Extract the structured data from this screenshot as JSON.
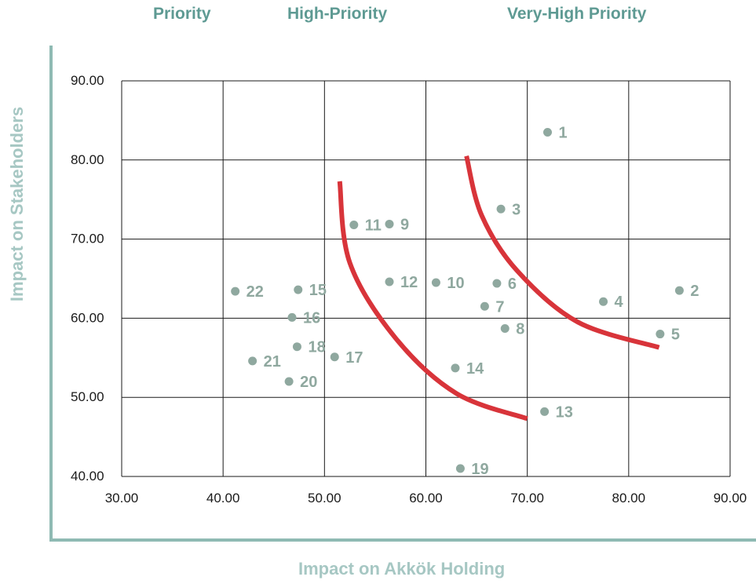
{
  "chart_data": {
    "type": "scatter",
    "title": "",
    "zones": [
      "Priority",
      "High-Priority",
      "Very-High Priority"
    ],
    "xlabel": "Impact on Akkök Holding",
    "ylabel": "Impact on Stakeholders",
    "xlim": [
      30,
      90
    ],
    "ylim": [
      40,
      90
    ],
    "x_ticks": [
      "30.00",
      "40.00",
      "50.00",
      "60.00",
      "70.00",
      "80.00",
      "90.00"
    ],
    "y_ticks": [
      "40.00",
      "50.00",
      "60.00",
      "70.00",
      "80.00",
      "90.00"
    ],
    "grid": true,
    "colors": {
      "points": "#8fa89f",
      "curves": "#d8343a",
      "frame": "#8fbab3",
      "grid": "#1a1a1a"
    },
    "points": [
      {
        "label": "1",
        "x": 72.0,
        "y": 83.5
      },
      {
        "label": "2",
        "x": 85.0,
        "y": 63.5
      },
      {
        "label": "3",
        "x": 67.4,
        "y": 73.8
      },
      {
        "label": "4",
        "x": 77.5,
        "y": 62.1
      },
      {
        "label": "5",
        "x": 83.1,
        "y": 58.0
      },
      {
        "label": "6",
        "x": 67.0,
        "y": 64.4
      },
      {
        "label": "7",
        "x": 65.8,
        "y": 61.5
      },
      {
        "label": "8",
        "x": 67.8,
        "y": 58.7
      },
      {
        "label": "9",
        "x": 56.4,
        "y": 71.9
      },
      {
        "label": "10",
        "x": 61.0,
        "y": 64.5
      },
      {
        "label": "11",
        "x": 52.9,
        "y": 71.8
      },
      {
        "label": "12",
        "x": 56.4,
        "y": 64.6
      },
      {
        "label": "13",
        "x": 71.7,
        "y": 48.2
      },
      {
        "label": "14",
        "x": 62.9,
        "y": 53.7
      },
      {
        "label": "15",
        "x": 47.4,
        "y": 63.6
      },
      {
        "label": "16",
        "x": 46.8,
        "y": 60.1
      },
      {
        "label": "17",
        "x": 51.0,
        "y": 55.1
      },
      {
        "label": "18",
        "x": 47.3,
        "y": 56.4
      },
      {
        "label": "19",
        "x": 63.4,
        "y": 41.0
      },
      {
        "label": "20",
        "x": 46.5,
        "y": 52.0
      },
      {
        "label": "21",
        "x": 42.9,
        "y": 54.6
      },
      {
        "label": "22",
        "x": 41.2,
        "y": 63.4
      }
    ],
    "curves": [
      [
        [
          51.5,
          77.3
        ],
        [
          52.5,
          67.0
        ],
        [
          57.0,
          57.5
        ],
        [
          63.0,
          50.5
        ],
        [
          70.0,
          47.3
        ]
      ],
      [
        [
          64.0,
          80.5
        ],
        [
          65.5,
          73.0
        ],
        [
          69.0,
          66.0
        ],
        [
          75.0,
          59.5
        ],
        [
          83.0,
          56.3
        ]
      ]
    ]
  }
}
